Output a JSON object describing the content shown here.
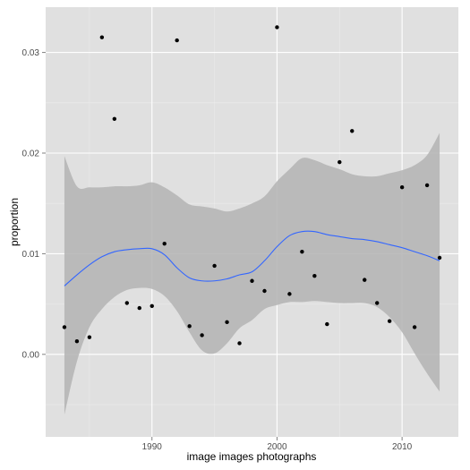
{
  "chart_data": {
    "type": "scatter",
    "title": "",
    "xlabel": "image images photographs",
    "ylabel": "proportion",
    "xlim": [
      1981.5,
      2014.5
    ],
    "ylim": [
      -0.0082,
      0.0345
    ],
    "x_ticks": [
      1990,
      2000,
      2010
    ],
    "x_tick_labels": [
      "1990",
      "2000",
      "2010"
    ],
    "y_ticks": [
      0.0,
      0.01,
      0.02,
      0.03
    ],
    "y_tick_labels": [
      "0.00",
      "0.01",
      "0.02",
      "0.03"
    ],
    "grid": true,
    "colors": {
      "panel_background": "#e0e0e0",
      "grid_major": "#ffffff",
      "grid_minor": "#ebebeb",
      "points": "#000000",
      "smooth_line": "#3366ff",
      "confidence_band": "#b3b3b3"
    },
    "series": [
      {
        "type": "scatter",
        "x": [
          1983,
          1984,
          1985,
          1986,
          1987,
          1988,
          1989,
          1990,
          1991,
          1992,
          1993,
          1994,
          1995,
          1996,
          1997,
          1998,
          1999,
          2000,
          2001,
          2002,
          2003,
          2004,
          2005,
          2006,
          2007,
          2008,
          2009,
          2010,
          2011,
          2012,
          2013
        ],
        "y": [
          0.0027,
          0.0013,
          0.0017,
          0.0315,
          0.0234,
          0.0051,
          0.0046,
          0.0048,
          0.011,
          0.0312,
          0.0028,
          0.0019,
          0.0088,
          0.0032,
          0.0011,
          0.0073,
          0.0063,
          0.0325,
          0.006,
          0.0102,
          0.0078,
          0.003,
          0.0191,
          0.0222,
          0.0074,
          0.0051,
          0.0033,
          0.0166,
          0.0027,
          0.0168,
          0.0096
        ]
      },
      {
        "type": "smooth",
        "x": [
          1983,
          1984,
          1985,
          1986,
          1987,
          1988,
          1989,
          1990,
          1991,
          1992,
          1993,
          1994,
          1995,
          1996,
          1997,
          1998,
          1999,
          2000,
          2001,
          2002,
          2003,
          2004,
          2005,
          2006,
          2007,
          2008,
          2009,
          2010,
          2011,
          2012,
          2013
        ],
        "y": [
          0.0068,
          0.0079,
          0.0089,
          0.0097,
          0.0102,
          0.0104,
          0.0105,
          0.0105,
          0.0099,
          0.0086,
          0.0076,
          0.0073,
          0.0073,
          0.0075,
          0.0079,
          0.0082,
          0.0093,
          0.0107,
          0.0118,
          0.0122,
          0.0122,
          0.0119,
          0.0117,
          0.0115,
          0.0114,
          0.0112,
          0.0109,
          0.0106,
          0.0102,
          0.0098,
          0.0093
        ],
        "ymin": [
          -0.006,
          -0.0007,
          0.0027,
          0.0045,
          0.0057,
          0.0064,
          0.0066,
          0.0065,
          0.0058,
          0.0043,
          0.0022,
          0.0004,
          0.0001,
          0.0011,
          0.0026,
          0.0034,
          0.0045,
          0.0049,
          0.0052,
          0.0052,
          0.0053,
          0.0052,
          0.0051,
          0.0051,
          0.0051,
          0.0047,
          0.0037,
          0.0022,
          0.0001,
          -0.0019,
          -0.0037
        ],
        "ymax": [
          0.0197,
          0.0167,
          0.0166,
          0.0166,
          0.0167,
          0.0167,
          0.0168,
          0.0171,
          0.0166,
          0.0158,
          0.0149,
          0.0147,
          0.0145,
          0.0142,
          0.0145,
          0.015,
          0.0157,
          0.0172,
          0.0184,
          0.0195,
          0.0193,
          0.0188,
          0.0184,
          0.0179,
          0.0177,
          0.0177,
          0.018,
          0.0183,
          0.0188,
          0.0198,
          0.022
        ]
      }
    ]
  }
}
